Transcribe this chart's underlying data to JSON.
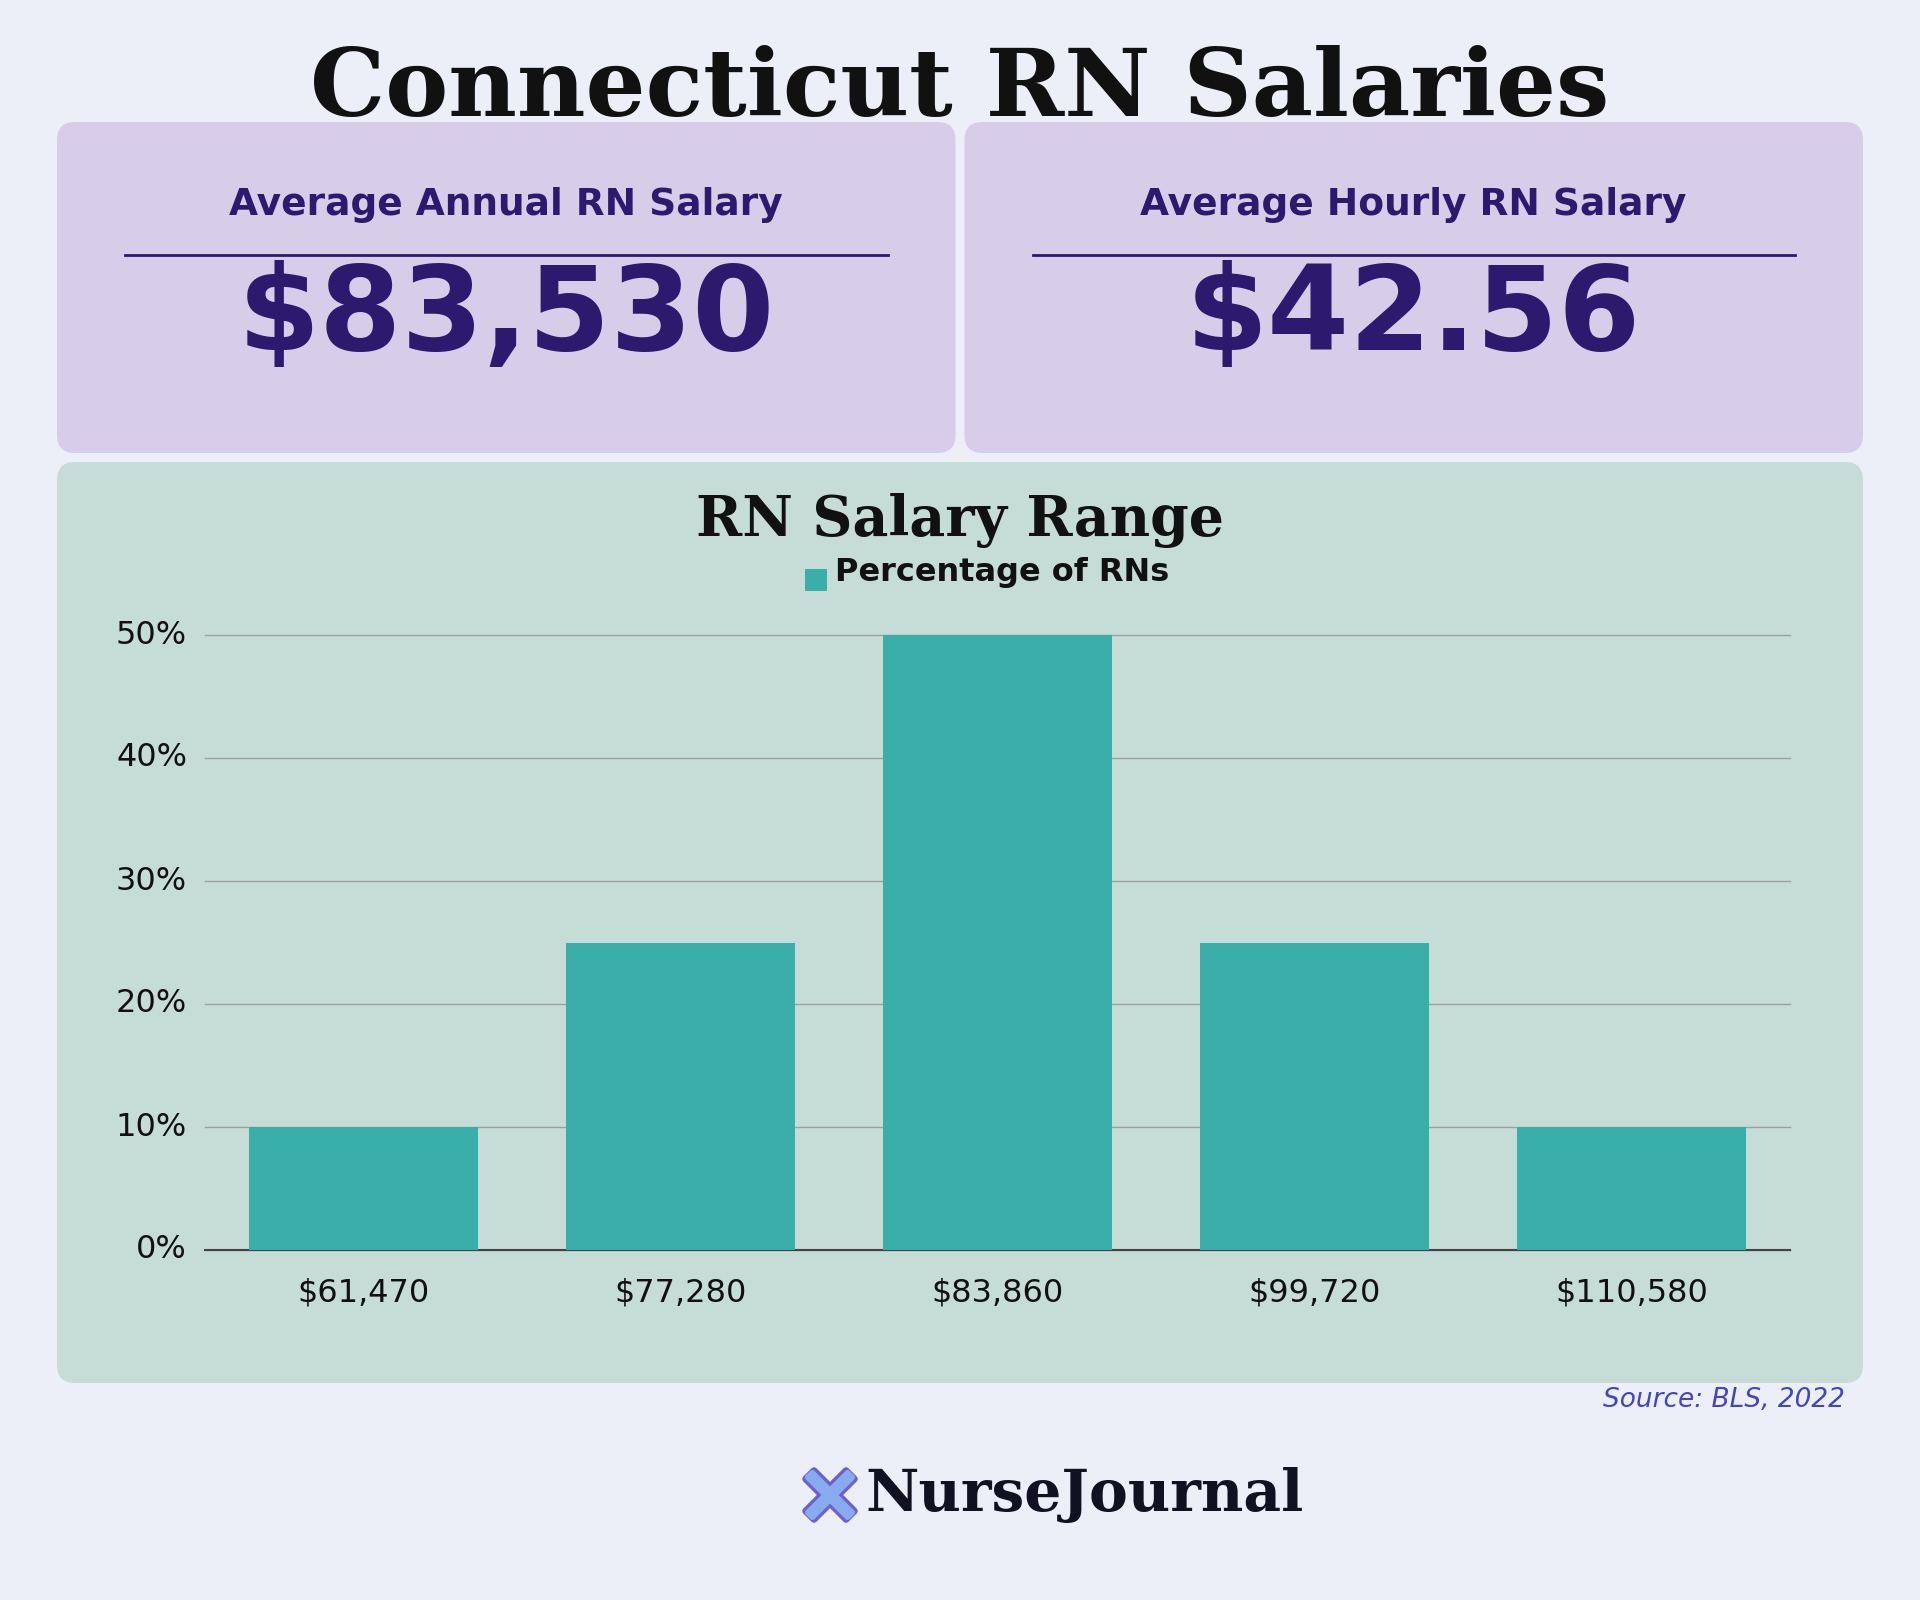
{
  "title": "Connecticut RN Salaries",
  "title_color": "#111111",
  "title_fontsize": 68,
  "bg_color": "#eceef8",
  "card_color": "#d8cde8",
  "card_label_color": "#2b1a6e",
  "card_value_color": "#2b1a6e",
  "card1_label": "Average Annual RN Salary",
  "card1_value": "$83,530",
  "card2_label": "Average Hourly RN Salary",
  "card2_value": "$42.56",
  "chart_bg_color": "#c5ddd6",
  "chart_title": "RN Salary Range",
  "chart_legend": "Percentage of RNs",
  "bar_color": "#3aafa9",
  "categories": [
    "$61,470",
    "$77,280",
    "$83,860",
    "$99,720",
    "$110,580"
  ],
  "values": [
    10,
    25,
    50,
    25,
    10
  ],
  "yticks": [
    0,
    10,
    20,
    30,
    40,
    50
  ],
  "ytick_labels": [
    "0%",
    "10%",
    "20%",
    "30%",
    "40%",
    "50%"
  ],
  "source_text": "Source: BLS, 2022",
  "source_color": "#4444bb",
  "nj_text": "NurseJournal",
  "nj_color": "#111122"
}
